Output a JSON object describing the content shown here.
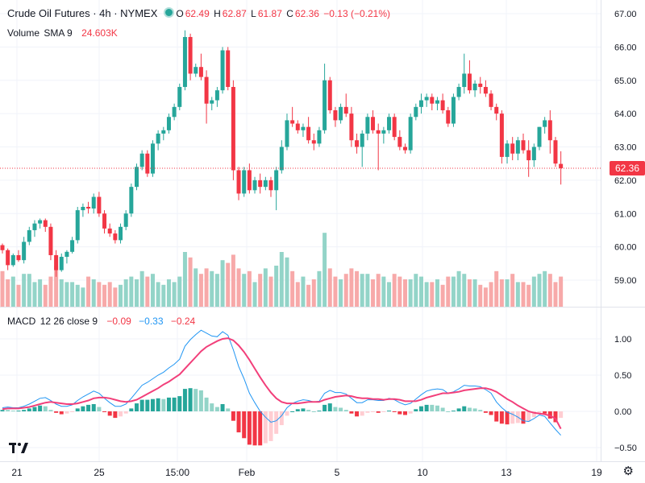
{
  "header": {
    "symbol_title": "Crude Oil Futures · 4h · NYMEX",
    "open_label": "O",
    "open": "62.49",
    "high_label": "H",
    "high": "62.87",
    "low_label": "L",
    "low": "61.87",
    "close_label": "C",
    "close": "62.36",
    "change": "−0.13 (−0.21%)"
  },
  "volume_legend": {
    "label": "Volume",
    "params": "SMA 9",
    "value": "24.603K"
  },
  "macd_legend": {
    "label": "MACD",
    "params": "12 26 close 9",
    "v1": "−0.09",
    "v2": "−0.33",
    "v3": "−0.24"
  },
  "price_tag": "62.36",
  "colors": {
    "up": "#26a69a",
    "down": "#f23645",
    "macd": "#2196f3",
    "signal": "#f23f7a",
    "up_vol": "#93d4c8",
    "down_vol": "#f7a9a9"
  },
  "chart_data": [
    {
      "type": "candlestick",
      "ylim": [
        58.4,
        67.3
      ],
      "price_ticks": [
        "67.00",
        "66.00",
        "65.00",
        "64.00",
        "63.00",
        "62.00",
        "61.00",
        "60.00",
        "59.00"
      ],
      "x_ticks": [
        "21",
        "25",
        "15:00",
        "Feb",
        "5",
        "10",
        "13",
        "19"
      ],
      "last_price": 62.36,
      "candles": [
        [
          60.05,
          60.1,
          59.8,
          59.9
        ],
        [
          59.9,
          59.95,
          59.3,
          59.45
        ],
        [
          59.45,
          59.8,
          59.4,
          59.75
        ],
        [
          59.75,
          59.9,
          59.55,
          59.6
        ],
        [
          59.6,
          60.3,
          59.5,
          60.15
        ],
        [
          60.15,
          60.6,
          60.05,
          60.5
        ],
        [
          60.5,
          60.8,
          60.3,
          60.7
        ],
        [
          60.7,
          60.85,
          60.55,
          60.8
        ],
        [
          60.8,
          60.85,
          60.45,
          60.6
        ],
        [
          60.6,
          60.7,
          59.6,
          59.75
        ],
        [
          59.75,
          59.9,
          59.1,
          59.3
        ],
        [
          59.3,
          59.8,
          59.25,
          59.7
        ],
        [
          59.7,
          59.9,
          59.5,
          59.85
        ],
        [
          59.85,
          60.3,
          59.8,
          60.2
        ],
        [
          60.2,
          61.2,
          60.1,
          61.1
        ],
        [
          61.1,
          61.3,
          60.9,
          61.2
        ],
        [
          61.2,
          61.35,
          61.0,
          61.15
        ],
        [
          61.15,
          61.6,
          61.0,
          61.5
        ],
        [
          61.5,
          61.65,
          60.9,
          61.0
        ],
        [
          61.0,
          61.1,
          60.4,
          60.55
        ],
        [
          60.55,
          60.7,
          60.3,
          60.4
        ],
        [
          60.4,
          60.5,
          60.1,
          60.2
        ],
        [
          60.2,
          60.7,
          60.1,
          60.6
        ],
        [
          60.6,
          61.1,
          60.5,
          61.0
        ],
        [
          61.0,
          61.9,
          60.9,
          61.8
        ],
        [
          61.8,
          62.5,
          61.7,
          62.4
        ],
        [
          62.4,
          62.9,
          62.3,
          62.8
        ],
        [
          62.8,
          62.9,
          62.1,
          62.2
        ],
        [
          62.2,
          63.2,
          62.1,
          63.1
        ],
        [
          63.1,
          63.5,
          62.9,
          63.4
        ],
        [
          63.4,
          63.6,
          63.2,
          63.5
        ],
        [
          63.5,
          64.0,
          63.4,
          63.9
        ],
        [
          63.9,
          64.3,
          63.8,
          64.2
        ],
        [
          64.2,
          64.9,
          64.1,
          64.8
        ],
        [
          64.8,
          66.5,
          64.7,
          66.3
        ],
        [
          66.3,
          66.4,
          65.0,
          65.2
        ],
        [
          65.2,
          65.5,
          65.1,
          65.4
        ],
        [
          65.4,
          65.8,
          65.0,
          65.1
        ],
        [
          65.1,
          65.3,
          63.7,
          64.3
        ],
        [
          64.3,
          64.5,
          64.1,
          64.4
        ],
        [
          64.4,
          64.8,
          64.2,
          64.7
        ],
        [
          64.7,
          66.0,
          64.6,
          65.9
        ],
        [
          65.9,
          66.0,
          64.7,
          64.8
        ],
        [
          64.8,
          65.0,
          62.0,
          62.3
        ],
        [
          62.3,
          62.4,
          61.4,
          61.6
        ],
        [
          61.6,
          62.4,
          61.5,
          62.3
        ],
        [
          62.3,
          62.5,
          61.6,
          61.7
        ],
        [
          61.7,
          62.1,
          61.6,
          62.0
        ],
        [
          62.0,
          62.2,
          61.6,
          61.8
        ],
        [
          61.8,
          62.1,
          61.7,
          62.0
        ],
        [
          62.0,
          62.1,
          61.5,
          61.7
        ],
        [
          61.7,
          62.4,
          61.1,
          62.3
        ],
        [
          62.3,
          63.2,
          62.2,
          63.0
        ],
        [
          63.0,
          64.0,
          62.9,
          63.8
        ],
        [
          63.8,
          64.2,
          63.6,
          63.7
        ],
        [
          63.7,
          63.8,
          63.4,
          63.5
        ],
        [
          63.5,
          63.7,
          63.3,
          63.6
        ],
        [
          63.6,
          63.9,
          63.1,
          63.2
        ],
        [
          63.2,
          63.4,
          62.9,
          63.1
        ],
        [
          63.1,
          63.6,
          63.0,
          63.5
        ],
        [
          63.5,
          65.5,
          63.4,
          65.0
        ],
        [
          65.0,
          65.1,
          64.0,
          64.1
        ],
        [
          64.1,
          64.2,
          63.6,
          63.8
        ],
        [
          63.8,
          64.3,
          63.7,
          64.2
        ],
        [
          64.2,
          64.6,
          63.9,
          64.0
        ],
        [
          64.0,
          64.2,
          63.0,
          63.2
        ],
        [
          63.2,
          63.4,
          62.8,
          63.0
        ],
        [
          63.0,
          63.5,
          62.4,
          63.4
        ],
        [
          63.4,
          64.0,
          63.2,
          63.9
        ],
        [
          63.9,
          64.1,
          63.4,
          63.5
        ],
        [
          63.5,
          63.7,
          62.3,
          63.4
        ],
        [
          63.4,
          63.6,
          63.1,
          63.5
        ],
        [
          63.5,
          64.0,
          63.4,
          63.9
        ],
        [
          63.9,
          64.0,
          63.2,
          63.3
        ],
        [
          63.3,
          63.5,
          62.9,
          63.0
        ],
        [
          63.0,
          63.1,
          62.8,
          62.9
        ],
        [
          62.9,
          64.0,
          62.8,
          63.9
        ],
        [
          63.9,
          64.3,
          63.8,
          64.2
        ],
        [
          64.2,
          64.6,
          64.0,
          64.4
        ],
        [
          64.4,
          64.6,
          64.2,
          64.5
        ],
        [
          64.5,
          64.6,
          64.1,
          64.3
        ],
        [
          64.3,
          64.5,
          64.1,
          64.4
        ],
        [
          64.4,
          64.6,
          64.0,
          64.1
        ],
        [
          64.1,
          64.2,
          63.6,
          63.7
        ],
        [
          63.7,
          64.6,
          63.6,
          64.5
        ],
        [
          64.5,
          64.9,
          64.4,
          64.8
        ],
        [
          64.8,
          65.8,
          64.6,
          65.2
        ],
        [
          65.2,
          65.6,
          64.6,
          64.7
        ],
        [
          64.7,
          65.0,
          64.5,
          64.9
        ],
        [
          64.9,
          65.1,
          64.6,
          64.8
        ],
        [
          64.8,
          65.0,
          64.5,
          64.6
        ],
        [
          64.6,
          64.7,
          64.1,
          64.2
        ],
        [
          64.2,
          64.3,
          63.8,
          64.0
        ],
        [
          64.0,
          64.1,
          62.5,
          62.7
        ],
        [
          62.7,
          63.2,
          62.5,
          63.1
        ],
        [
          63.1,
          63.3,
          62.6,
          62.8
        ],
        [
          62.8,
          63.3,
          62.6,
          63.2
        ],
        [
          63.2,
          63.4,
          62.8,
          62.9
        ],
        [
          62.9,
          63.2,
          62.1,
          62.6
        ],
        [
          62.6,
          63.1,
          62.4,
          63.0
        ],
        [
          63.0,
          63.6,
          62.9,
          63.6
        ],
        [
          63.6,
          63.9,
          63.4,
          63.8
        ],
        [
          63.8,
          64.1,
          62.8,
          63.2
        ],
        [
          63.2,
          63.3,
          62.4,
          62.5
        ],
        [
          62.49,
          62.87,
          61.87,
          62.36
        ]
      ],
      "volumes": [
        13,
        10,
        11,
        8,
        12,
        12,
        9,
        10,
        8,
        11,
        15,
        10,
        9,
        9,
        8,
        7,
        11,
        10,
        9,
        8,
        9,
        7,
        8,
        10,
        11,
        10,
        13,
        11,
        12,
        9,
        8,
        10,
        9,
        11,
        20,
        18,
        14,
        12,
        14,
        13,
        12,
        17,
        16,
        19,
        14,
        12,
        13,
        9,
        12,
        14,
        11,
        15,
        20,
        18,
        13,
        9,
        11,
        8,
        10,
        13,
        27,
        14,
        11,
        10,
        12,
        14,
        13,
        12,
        12,
        10,
        12,
        11,
        9,
        12,
        11,
        10,
        10,
        12,
        11,
        9,
        9,
        10,
        8,
        11,
        11,
        13,
        12,
        10,
        10,
        8,
        7,
        9,
        13,
        10,
        10,
        12,
        9,
        9,
        8,
        11,
        12,
        13,
        12,
        9,
        11
      ]
    },
    {
      "type": "macd",
      "ylim": [
        -0.6,
        1.32
      ],
      "y_ticks": [
        "1.00",
        "0.50",
        "0.00",
        "−0.50"
      ],
      "macd": [
        0.05,
        0.06,
        0.05,
        0.05,
        0.07,
        0.1,
        0.14,
        0.18,
        0.19,
        0.15,
        0.1,
        0.07,
        0.07,
        0.09,
        0.15,
        0.2,
        0.24,
        0.28,
        0.25,
        0.18,
        0.12,
        0.07,
        0.07,
        0.1,
        0.18,
        0.27,
        0.36,
        0.4,
        0.45,
        0.5,
        0.54,
        0.6,
        0.65,
        0.72,
        0.9,
        0.99,
        1.06,
        1.12,
        1.08,
        1.04,
        1.03,
        1.1,
        1.05,
        0.85,
        0.62,
        0.45,
        0.25,
        0.12,
        0.0,
        -0.08,
        -0.15,
        -0.13,
        -0.06,
        0.05,
        0.11,
        0.14,
        0.16,
        0.15,
        0.13,
        0.14,
        0.25,
        0.29,
        0.26,
        0.26,
        0.24,
        0.18,
        0.12,
        0.12,
        0.16,
        0.16,
        0.15,
        0.15,
        0.18,
        0.16,
        0.12,
        0.09,
        0.11,
        0.17,
        0.23,
        0.28,
        0.3,
        0.31,
        0.3,
        0.25,
        0.27,
        0.31,
        0.36,
        0.35,
        0.35,
        0.34,
        0.3,
        0.25,
        0.13,
        0.05,
        -0.01,
        -0.04,
        -0.08,
        -0.13,
        -0.14,
        -0.1,
        -0.05,
        -0.07,
        -0.16,
        -0.25,
        -0.33
      ],
      "signal": [
        0.03,
        0.04,
        0.04,
        0.04,
        0.05,
        0.06,
        0.08,
        0.1,
        0.12,
        0.13,
        0.12,
        0.11,
        0.1,
        0.1,
        0.11,
        0.13,
        0.15,
        0.18,
        0.19,
        0.19,
        0.18,
        0.16,
        0.14,
        0.13,
        0.14,
        0.16,
        0.2,
        0.24,
        0.28,
        0.32,
        0.37,
        0.41,
        0.46,
        0.51,
        0.59,
        0.67,
        0.75,
        0.83,
        0.89,
        0.93,
        0.97,
        1.0,
        1.01,
        0.98,
        0.91,
        0.82,
        0.71,
        0.59,
        0.47,
        0.36,
        0.26,
        0.18,
        0.13,
        0.11,
        0.11,
        0.11,
        0.12,
        0.13,
        0.13,
        0.13,
        0.16,
        0.18,
        0.2,
        0.21,
        0.22,
        0.21,
        0.19,
        0.18,
        0.18,
        0.17,
        0.17,
        0.16,
        0.17,
        0.17,
        0.16,
        0.14,
        0.14,
        0.14,
        0.16,
        0.19,
        0.21,
        0.23,
        0.25,
        0.25,
        0.26,
        0.27,
        0.29,
        0.3,
        0.31,
        0.32,
        0.32,
        0.3,
        0.27,
        0.22,
        0.17,
        0.13,
        0.08,
        0.04,
        0.0,
        -0.02,
        -0.03,
        -0.04,
        -0.06,
        -0.1,
        -0.24
      ]
    }
  ]
}
